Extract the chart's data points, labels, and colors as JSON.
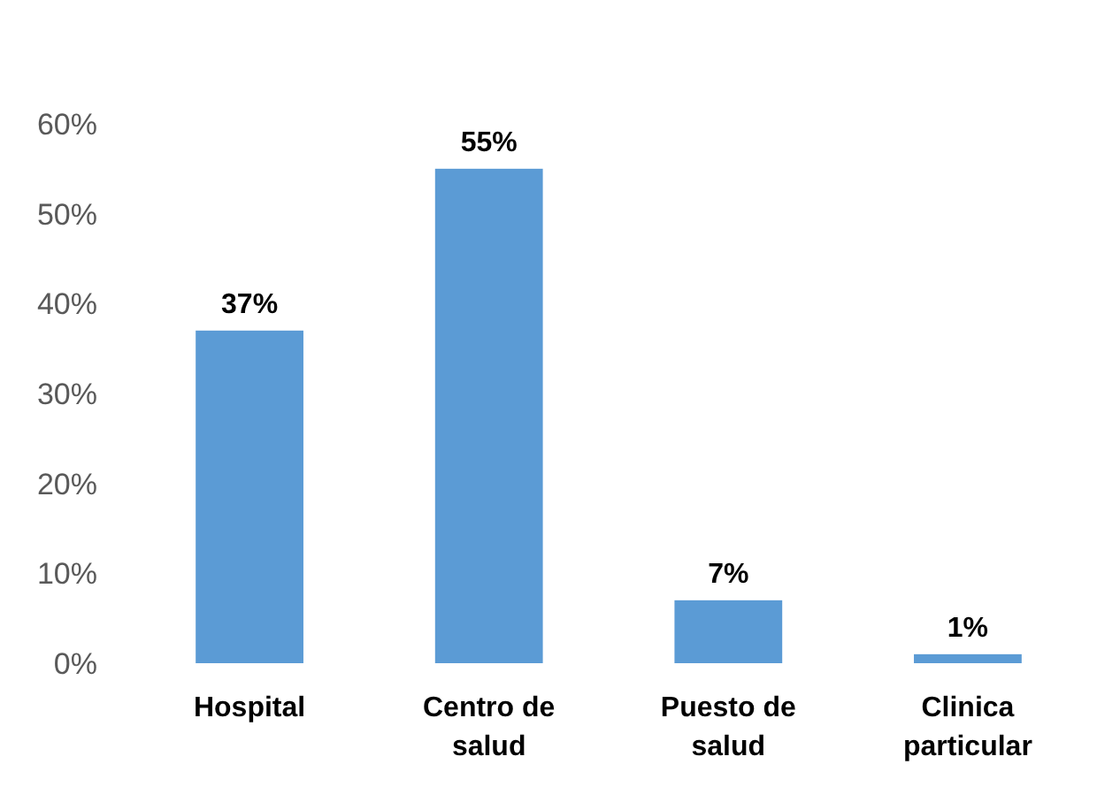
{
  "chart_data": {
    "type": "bar",
    "categories": [
      "Hospital",
      "Centro de salud",
      "Puesto de salud",
      "Clinica particular"
    ],
    "values": [
      37,
      55,
      7,
      1
    ],
    "color": "#5b9bd5",
    "value_labels": [
      "37%",
      "55%",
      "7%",
      "1%"
    ],
    "ylim": [
      0,
      60
    ],
    "yticks": [
      {
        "value": 0,
        "label": "0%"
      },
      {
        "value": 10,
        "label": "10%"
      },
      {
        "value": 20,
        "label": "20%"
      },
      {
        "value": 30,
        "label": "30%"
      },
      {
        "value": 40,
        "label": "40%"
      },
      {
        "value": 50,
        "label": "50%"
      },
      {
        "value": 60,
        "label": "60%"
      }
    ]
  }
}
